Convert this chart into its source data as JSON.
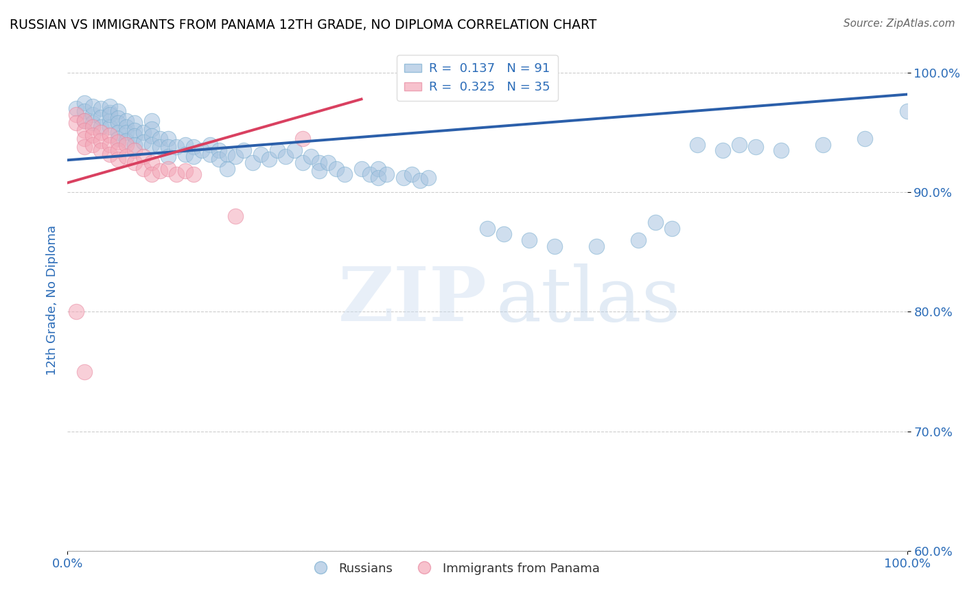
{
  "title": "RUSSIAN VS IMMIGRANTS FROM PANAMA 12TH GRADE, NO DIPLOMA CORRELATION CHART",
  "source": "Source: ZipAtlas.com",
  "ylabel": "12th Grade, No Diploma",
  "xmin": 0.0,
  "xmax": 1.0,
  "ymin": 0.6,
  "ymax": 1.02,
  "xtick_labels": [
    "0.0%",
    "100.0%"
  ],
  "ytick_labels": [
    "60.0%",
    "70.0%",
    "80.0%",
    "90.0%",
    "100.0%"
  ],
  "ytick_vals": [
    0.6,
    0.7,
    0.8,
    0.9,
    1.0
  ],
  "russian_R": 0.137,
  "russian_N": 91,
  "panama_R": 0.325,
  "panama_N": 35,
  "legend_blue_label": "Russians",
  "legend_pink_label": "Immigrants from Panama",
  "blue_color": "#a8c4e0",
  "pink_color": "#f4a8b8",
  "blue_line_color": "#2b5faa",
  "pink_line_color": "#d94060",
  "blue_line_x": [
    0.0,
    1.0
  ],
  "blue_line_y": [
    0.927,
    0.982
  ],
  "pink_line_x": [
    0.0,
    0.35
  ],
  "pink_line_y": [
    0.908,
    0.978
  ],
  "russian_x": [
    0.01,
    0.02,
    0.02,
    0.02,
    0.03,
    0.03,
    0.03,
    0.04,
    0.04,
    0.04,
    0.05,
    0.05,
    0.05,
    0.05,
    0.05,
    0.06,
    0.06,
    0.06,
    0.06,
    0.06,
    0.07,
    0.07,
    0.07,
    0.07,
    0.08,
    0.08,
    0.08,
    0.08,
    0.09,
    0.09,
    0.1,
    0.1,
    0.1,
    0.1,
    0.11,
    0.11,
    0.12,
    0.12,
    0.12,
    0.13,
    0.14,
    0.14,
    0.15,
    0.15,
    0.16,
    0.17,
    0.17,
    0.18,
    0.18,
    0.19,
    0.2,
    0.21,
    0.22,
    0.23,
    0.24,
    0.25,
    0.26,
    0.27,
    0.28,
    0.29,
    0.3,
    0.3,
    0.31,
    0.32,
    0.33,
    0.35,
    0.36,
    0.37,
    0.37,
    0.38,
    0.4,
    0.41,
    0.42,
    0.43,
    0.5,
    0.52,
    0.55,
    0.58,
    0.63,
    0.68,
    0.7,
    0.72,
    0.75,
    0.78,
    0.8,
    0.82,
    0.85,
    0.9,
    0.95,
    1.0,
    0.19
  ],
  "russian_y": [
    0.97,
    0.975,
    0.968,
    0.96,
    0.965,
    0.972,
    0.958,
    0.97,
    0.963,
    0.955,
    0.967,
    0.96,
    0.955,
    0.972,
    0.965,
    0.968,
    0.962,
    0.958,
    0.95,
    0.945,
    0.96,
    0.955,
    0.95,
    0.943,
    0.958,
    0.952,
    0.947,
    0.94,
    0.95,
    0.942,
    0.96,
    0.953,
    0.947,
    0.94,
    0.945,
    0.938,
    0.945,
    0.938,
    0.93,
    0.938,
    0.94,
    0.932,
    0.938,
    0.93,
    0.935,
    0.94,
    0.932,
    0.935,
    0.928,
    0.932,
    0.93,
    0.935,
    0.925,
    0.932,
    0.928,
    0.935,
    0.93,
    0.935,
    0.925,
    0.93,
    0.925,
    0.918,
    0.925,
    0.92,
    0.915,
    0.92,
    0.915,
    0.92,
    0.912,
    0.915,
    0.912,
    0.915,
    0.91,
    0.912,
    0.87,
    0.865,
    0.86,
    0.855,
    0.855,
    0.86,
    0.875,
    0.87,
    0.94,
    0.935,
    0.94,
    0.938,
    0.935,
    0.94,
    0.945,
    0.968,
    0.92
  ],
  "panama_x": [
    0.01,
    0.01,
    0.02,
    0.02,
    0.02,
    0.02,
    0.03,
    0.03,
    0.03,
    0.04,
    0.04,
    0.04,
    0.05,
    0.05,
    0.05,
    0.06,
    0.06,
    0.06,
    0.07,
    0.07,
    0.08,
    0.08,
    0.09,
    0.09,
    0.1,
    0.1,
    0.11,
    0.12,
    0.13,
    0.14,
    0.15,
    0.2,
    0.28,
    0.01,
    0.02
  ],
  "panama_y": [
    0.965,
    0.958,
    0.96,
    0.952,
    0.945,
    0.938,
    0.955,
    0.948,
    0.94,
    0.95,
    0.943,
    0.935,
    0.948,
    0.94,
    0.932,
    0.942,
    0.935,
    0.928,
    0.94,
    0.93,
    0.935,
    0.925,
    0.93,
    0.92,
    0.925,
    0.915,
    0.918,
    0.92,
    0.915,
    0.918,
    0.915,
    0.88,
    0.945,
    0.8,
    0.75
  ]
}
